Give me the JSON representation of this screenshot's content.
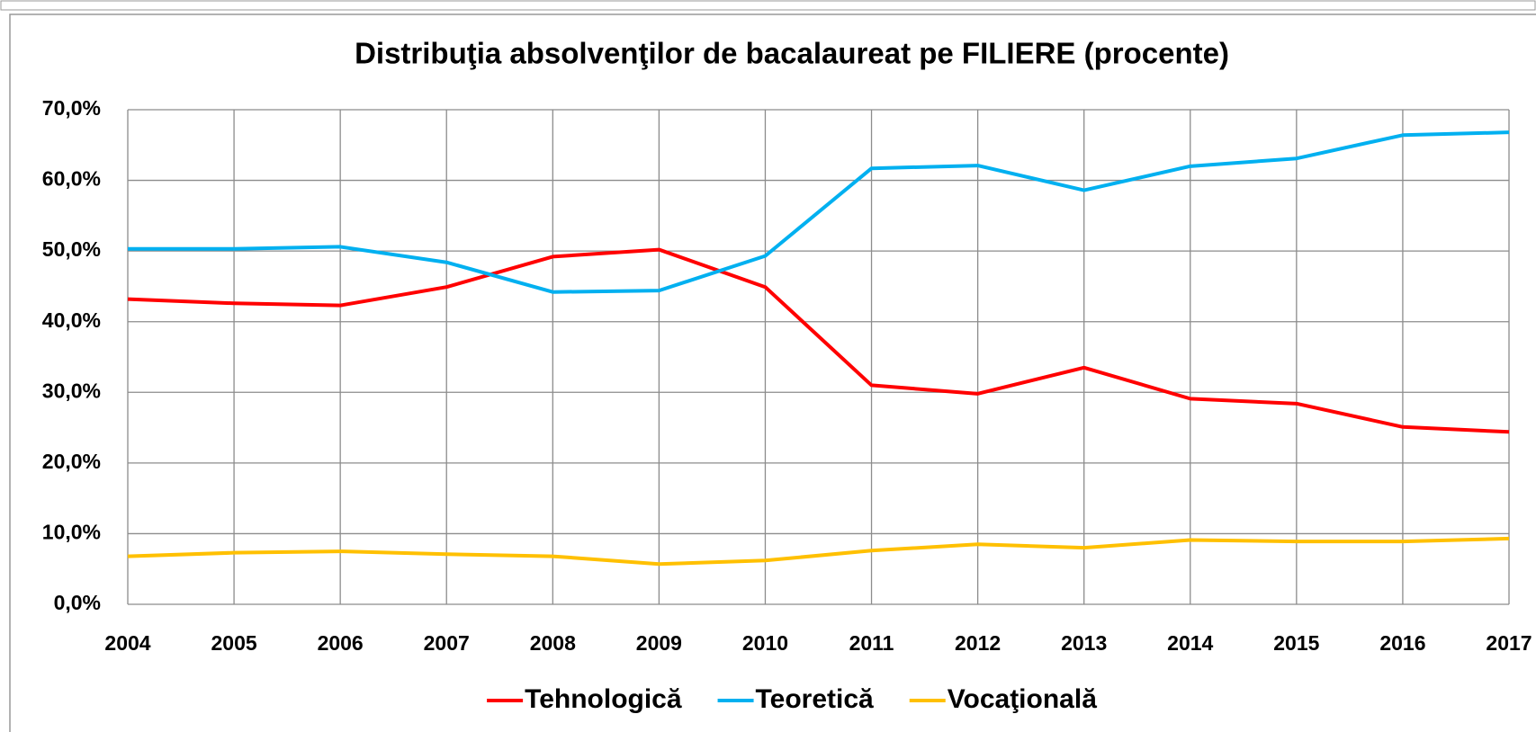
{
  "chart_data": {
    "type": "line",
    "title": "Distribuţia absolvenţilor de bacalaureat pe FILIERE (procente)",
    "x": [
      2004,
      2005,
      2006,
      2007,
      2008,
      2009,
      2010,
      2011,
      2012,
      2013,
      2014,
      2015,
      2016,
      2017
    ],
    "series": [
      {
        "name": "Tehnologică",
        "color": "#ff0000",
        "values": [
          43.2,
          42.6,
          42.3,
          44.9,
          49.2,
          50.2,
          44.9,
          31.0,
          29.8,
          33.5,
          29.1,
          28.4,
          25.1,
          24.4
        ]
      },
      {
        "name": "Teoretică",
        "color": "#00b0f0",
        "values": [
          50.3,
          50.3,
          50.6,
          48.4,
          44.2,
          44.4,
          49.3,
          61.7,
          62.1,
          58.6,
          62.0,
          63.1,
          66.4,
          66.8
        ]
      },
      {
        "name": "Vocaţională",
        "color": "#ffc000",
        "values": [
          6.8,
          7.3,
          7.5,
          7.1,
          6.8,
          5.7,
          6.2,
          7.6,
          8.5,
          8.0,
          9.1,
          8.9,
          8.9,
          9.3
        ]
      }
    ],
    "xlim": [
      2004,
      2017
    ],
    "xticks": [
      2004,
      2005,
      2006,
      2007,
      2008,
      2009,
      2010,
      2011,
      2012,
      2013,
      2014,
      2015,
      2016,
      2017
    ],
    "ylim": [
      0,
      70
    ],
    "yticks": [
      {
        "value": 0,
        "label": "0,0%"
      },
      {
        "value": 10,
        "label": "10,0%"
      },
      {
        "value": 20,
        "label": "20,0%"
      },
      {
        "value": 30,
        "label": "30,0%"
      },
      {
        "value": 40,
        "label": "40,0%"
      },
      {
        "value": 50,
        "label": "50,0%"
      },
      {
        "value": 60,
        "label": "60,0%"
      },
      {
        "value": 70,
        "label": "70,0%"
      }
    ],
    "grid": true,
    "legend": "bottom"
  }
}
